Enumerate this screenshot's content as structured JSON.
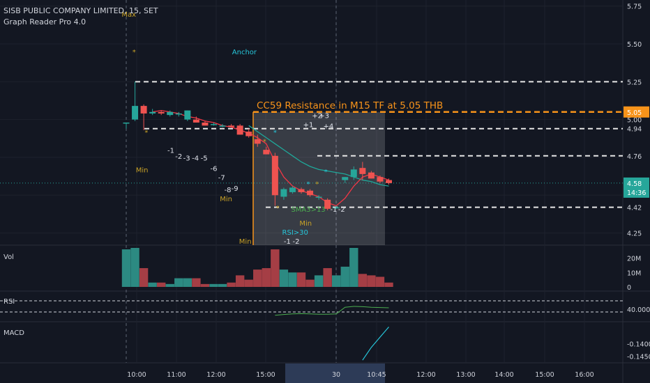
{
  "header": {
    "symbol_line": "SISB PUBLIC COMPANY LIMITED, 15, SET",
    "indicator_line": "Graph Reader Pro 4.0"
  },
  "panes": {
    "vol": "Vol",
    "rsi": "RSI",
    "macd": "MACD"
  },
  "colors": {
    "background": "#131722",
    "up": "#26a69a",
    "down": "#ef5350",
    "orange": "#f7931a",
    "annotation_gold": "#c9a227",
    "teal_line": "#1fa89a",
    "sma_red": "#f23645"
  },
  "chart_data": {
    "type": "candlestick",
    "price_axis": {
      "ticks": [
        "5.75",
        "5.50",
        "5.25",
        "5.00",
        "4.94",
        "4.76",
        "4.42",
        "4.25"
      ],
      "ylim": [
        4.17,
        5.79
      ],
      "badges": [
        {
          "label": "5.05",
          "value": 5.05,
          "color": "#f7931a"
        },
        {
          "label": "4.58",
          "value": 4.58,
          "color": "#26a69a"
        },
        {
          "label": "14:36",
          "value": 4.52,
          "color": "#26a69a"
        }
      ]
    },
    "time_axis": {
      "ticks": [
        "10:00",
        "11:00",
        "12:00",
        "15:00",
        "30",
        "10:45",
        "12:00",
        "13:00",
        "14:00",
        "15:00",
        "16:00"
      ],
      "highlight": "30"
    },
    "candles": [
      {
        "o": 4.98,
        "h": 4.98,
        "l": 4.94,
        "c": 4.98
      },
      {
        "o": 5.0,
        "h": 5.25,
        "l": 4.99,
        "c": 5.09
      },
      {
        "o": 5.09,
        "h": 5.1,
        "l": 4.93,
        "c": 5.04
      },
      {
        "o": 5.04,
        "h": 5.07,
        "l": 5.03,
        "c": 5.05
      },
      {
        "o": 5.05,
        "h": 5.06,
        "l": 5.03,
        "c": 5.04
      },
      {
        "o": 5.03,
        "h": 5.06,
        "l": 5.02,
        "c": 5.05
      },
      {
        "o": 5.04,
        "h": 5.05,
        "l": 5.02,
        "c": 5.04
      },
      {
        "o": 5.0,
        "h": 5.06,
        "l": 4.99,
        "c": 5.06
      },
      {
        "o": 5.0,
        "h": 5.02,
        "l": 4.98,
        "c": 4.98
      },
      {
        "o": 4.98,
        "h": 4.99,
        "l": 4.96,
        "c": 4.96
      },
      {
        "o": 4.97,
        "h": 4.98,
        "l": 4.96,
        "c": 4.97
      },
      {
        "o": 4.96,
        "h": 4.97,
        "l": 4.95,
        "c": 4.96
      },
      {
        "o": 4.96,
        "h": 4.97,
        "l": 4.95,
        "c": 4.95
      },
      {
        "o": 4.96,
        "h": 4.97,
        "l": 4.9,
        "c": 4.9
      },
      {
        "o": 4.92,
        "h": 4.94,
        "l": 4.88,
        "c": 4.89
      },
      {
        "o": 4.87,
        "h": 4.9,
        "l": 4.82,
        "c": 4.84
      },
      {
        "o": 4.8,
        "h": 4.82,
        "l": 4.77,
        "c": 4.77
      },
      {
        "o": 4.76,
        "h": 4.78,
        "l": 4.43,
        "c": 4.5
      },
      {
        "o": 4.49,
        "h": 4.55,
        "l": 4.47,
        "c": 4.54
      },
      {
        "o": 4.52,
        "h": 4.56,
        "l": 4.51,
        "c": 4.55
      },
      {
        "o": 4.54,
        "h": 4.55,
        "l": 4.51,
        "c": 4.52
      },
      {
        "o": 4.53,
        "h": 4.54,
        "l": 4.49,
        "c": 4.5
      },
      {
        "o": 4.49,
        "h": 4.5,
        "l": 4.47,
        "c": 4.49
      },
      {
        "o": 4.47,
        "h": 4.48,
        "l": 4.4,
        "c": 4.41
      },
      {
        "o": 4.42,
        "h": 4.43,
        "l": 4.41,
        "c": 4.42
      },
      {
        "o": 4.6,
        "h": 4.62,
        "l": 4.58,
        "c": 4.62
      },
      {
        "o": 4.62,
        "h": 4.69,
        "l": 4.6,
        "c": 4.67
      },
      {
        "o": 4.68,
        "h": 4.72,
        "l": 4.6,
        "c": 4.64
      },
      {
        "o": 4.65,
        "h": 4.66,
        "l": 4.61,
        "c": 4.61
      },
      {
        "o": 4.62,
        "h": 4.63,
        "l": 4.58,
        "c": 4.59
      },
      {
        "o": 4.6,
        "h": 4.61,
        "l": 4.57,
        "c": 4.58
      }
    ],
    "sma_line": [
      null,
      null,
      null,
      5.05,
      5.06,
      5.05,
      5.04,
      5.02,
      5.01,
      4.99,
      4.98,
      4.96,
      4.95,
      4.93,
      4.91,
      4.88,
      4.84,
      4.72,
      4.62,
      4.56,
      4.53,
      4.51,
      4.49,
      4.45,
      4.43,
      4.48,
      4.56,
      4.62,
      4.64,
      4.62,
      4.6
    ],
    "teal_line": [
      null,
      null,
      null,
      null,
      null,
      null,
      null,
      null,
      null,
      null,
      null,
      null,
      null,
      null,
      4.96,
      4.92,
      4.88,
      4.84,
      4.8,
      4.76,
      4.72,
      4.69,
      4.67,
      4.66,
      4.65,
      4.64,
      4.62,
      4.6,
      4.59,
      4.57,
      4.56
    ],
    "hlines": [
      {
        "value": 5.25,
        "style": "white-dashed"
      },
      {
        "value": 5.05,
        "style": "orange-dashed"
      },
      {
        "value": 4.94,
        "style": "white-dashed"
      },
      {
        "value": 4.76,
        "style": "white-dashed"
      },
      {
        "value": 4.42,
        "style": "white-dashed"
      },
      {
        "value": 4.58,
        "style": "teal-dotted"
      }
    ],
    "zone_title": "CC59 Resistance in M15 TF at 5.05 THB",
    "labels": [
      {
        "text": "Max",
        "i": 0.3,
        "y": 5.68,
        "color": "gold"
      },
      {
        "text": "*",
        "i": 0.9,
        "y": 5.43,
        "color": "gold"
      },
      {
        "text": "*",
        "i": 2.3,
        "y": 4.9,
        "color": "gold"
      },
      {
        "text": "Anchor",
        "i": 13.5,
        "y": 5.43,
        "color": "teal"
      },
      {
        "text": "*",
        "i": 15.8,
        "y": 4.84,
        "color": "gold"
      },
      {
        "text": "*",
        "i": 17.0,
        "y": 4.9,
        "color": "teal"
      },
      {
        "text": "*",
        "i": 17.3,
        "y": 4.4,
        "color": "gold"
      },
      {
        "text": "Min",
        "i": 1.8,
        "y": 4.65,
        "color": "gold"
      },
      {
        "text": "-1",
        "i": 5.1,
        "y": 4.78,
        "color": "white"
      },
      {
        "text": "-2",
        "i": 6.0,
        "y": 4.74,
        "color": "white"
      },
      {
        "text": "-3",
        "i": 6.9,
        "y": 4.73,
        "color": "white"
      },
      {
        "text": "-4",
        "i": 7.9,
        "y": 4.73,
        "color": "white"
      },
      {
        "text": "-5",
        "i": 8.9,
        "y": 4.73,
        "color": "white"
      },
      {
        "text": "-6",
        "i": 10.0,
        "y": 4.66,
        "color": "white"
      },
      {
        "text": "-7",
        "i": 10.9,
        "y": 4.6,
        "color": "white"
      },
      {
        "text": "-8",
        "i": 11.6,
        "y": 4.52,
        "color": "white"
      },
      {
        "text": "-9",
        "i": 12.4,
        "y": 4.53,
        "color": "white"
      },
      {
        "text": "Min",
        "i": 11.4,
        "y": 4.46,
        "color": "gold"
      },
      {
        "text": "+1",
        "i": 20.8,
        "y": 4.95,
        "color": "white"
      },
      {
        "text": "+2",
        "i": 21.8,
        "y": 5.01,
        "color": "white"
      },
      {
        "text": "+3",
        "i": 22.6,
        "y": 5.01,
        "color": "white"
      },
      {
        "text": "+4",
        "i": 23.1,
        "y": 4.94,
        "color": "white"
      },
      {
        "text": "*",
        "i": 20.8,
        "y": 4.56,
        "color": "teal"
      },
      {
        "text": "*",
        "i": 21.8,
        "y": 4.56,
        "color": "gold"
      },
      {
        "text": "*",
        "i": 22.8,
        "y": 4.64,
        "color": "teal"
      },
      {
        "text": "SMA3>13",
        "i": 20.8,
        "y": 4.39,
        "color": "green"
      },
      {
        "text": "-1",
        "i": 23.7,
        "y": 4.39,
        "color": "white"
      },
      {
        "text": "-2",
        "i": 24.6,
        "y": 4.39,
        "color": "white"
      },
      {
        "text": "Min",
        "i": 20.5,
        "y": 4.3,
        "color": "gold"
      },
      {
        "text": "RSI>30",
        "i": 19.3,
        "y": 4.24,
        "color": "teal"
      },
      {
        "text": "Min",
        "i": 13.6,
        "y": 4.18,
        "color": "gold"
      },
      {
        "text": "-1",
        "i": 18.4,
        "y": 4.18,
        "color": "white"
      },
      {
        "text": "-2",
        "i": 19.4,
        "y": 4.18,
        "color": "white"
      }
    ],
    "volume": {
      "ticks": [
        "20M",
        "10M",
        "0"
      ],
      "ylim": [
        0,
        27
      ],
      "values": [
        26,
        27,
        13,
        3,
        3,
        2,
        6,
        6,
        6,
        2,
        2,
        2,
        3,
        8,
        5,
        12,
        13,
        26,
        12,
        10,
        10,
        5,
        8,
        13,
        8,
        14,
        27,
        9,
        8,
        7,
        3
      ]
    },
    "rsi": {
      "ticks": [
        "40.0000"
      ],
      "levels": [
        70,
        30
      ],
      "ylim": [
        0,
        100
      ],
      "values": [
        null,
        null,
        null,
        null,
        null,
        null,
        null,
        null,
        null,
        null,
        null,
        null,
        null,
        null,
        null,
        null,
        null,
        18,
        21,
        23,
        24,
        23,
        22,
        22,
        23,
        47,
        50,
        49,
        47,
        46,
        45
      ]
    },
    "macd": {
      "ticks": [
        "-0.1400",
        "-0.1450"
      ],
      "ylim": [
        -0.147,
        -0.132
      ],
      "values": [
        null,
        null,
        null,
        null,
        null,
        null,
        null,
        null,
        null,
        null,
        null,
        null,
        null,
        null,
        null,
        null,
        null,
        null,
        null,
        null,
        null,
        null,
        null,
        null,
        null,
        null,
        null,
        -0.1465,
        -0.1415,
        -0.1375,
        -0.1335
      ]
    }
  }
}
